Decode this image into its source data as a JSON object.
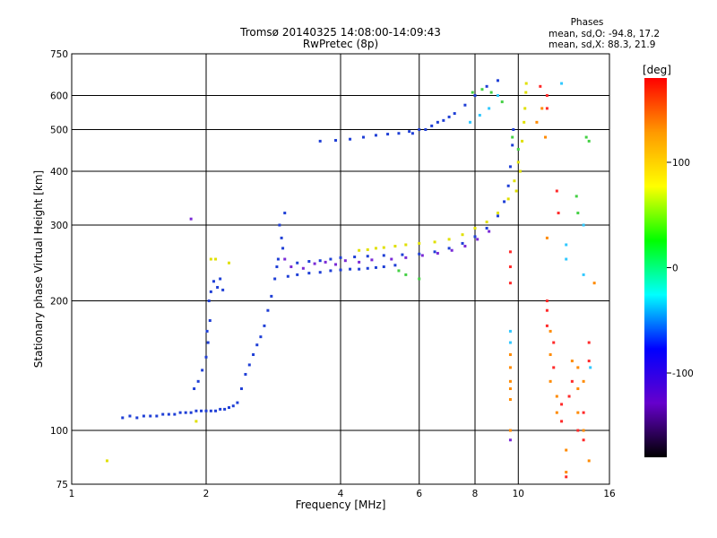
{
  "chart_data": {
    "type": "scatter",
    "title": "Tromsø 20140325 14:08:00-14:09:43",
    "subtitle": "RwPretec (8p)",
    "xlabel": "Frequency [MHz]",
    "ylabel": "Stationary phase Virtual Height [km]",
    "x_scale": "log",
    "y_scale": "log",
    "xlim": [
      1,
      16
    ],
    "ylim": [
      75,
      750
    ],
    "x_ticks": [
      1,
      2,
      4,
      6,
      8,
      10,
      16
    ],
    "y_ticks": [
      75,
      100,
      200,
      300,
      400,
      500,
      600,
      750
    ],
    "grid": true,
    "phase_box": {
      "title": "Phases",
      "line1": "mean, sd,O:  -94.8, 17.2",
      "line2": "mean, sd,X:   88.3, 21.9"
    },
    "colorbar": {
      "label": "[deg]",
      "min": -180,
      "max": 180,
      "ticks": [
        100,
        0,
        -100
      ],
      "colors": [
        "#ff0000",
        "#ff9900",
        "#ffff00",
        "#00ff00",
        "#00ffff",
        "#0000ff",
        "#6600cc",
        "#000000"
      ]
    },
    "series": [
      {
        "color": "#1f3fd6",
        "points": [
          [
            1.3,
            107
          ],
          [
            1.35,
            108
          ],
          [
            1.4,
            107
          ],
          [
            1.45,
            108
          ],
          [
            1.5,
            108
          ],
          [
            1.55,
            108
          ],
          [
            1.6,
            109
          ],
          [
            1.65,
            109
          ],
          [
            1.7,
            109
          ],
          [
            1.75,
            110
          ],
          [
            1.8,
            110
          ],
          [
            1.85,
            110
          ],
          [
            1.9,
            111
          ],
          [
            1.95,
            111
          ],
          [
            2.0,
            111
          ],
          [
            2.05,
            111
          ],
          [
            2.1,
            111
          ],
          [
            2.15,
            112
          ],
          [
            2.2,
            112
          ],
          [
            2.25,
            113
          ],
          [
            2.3,
            114
          ],
          [
            2.35,
            116
          ],
          [
            1.88,
            125
          ],
          [
            1.92,
            130
          ],
          [
            1.96,
            138
          ],
          [
            2.0,
            148
          ],
          [
            2.02,
            160
          ],
          [
            2.04,
            180
          ],
          [
            2.05,
            210
          ],
          [
            2.08,
            222
          ],
          [
            2.12,
            215
          ],
          [
            2.15,
            225
          ],
          [
            2.18,
            212
          ],
          [
            2.03,
            200
          ],
          [
            2.01,
            170
          ],
          [
            2.4,
            125
          ],
          [
            2.45,
            135
          ],
          [
            2.5,
            142
          ],
          [
            2.55,
            150
          ],
          [
            2.6,
            158
          ],
          [
            2.65,
            165
          ],
          [
            2.7,
            175
          ],
          [
            2.75,
            190
          ],
          [
            2.8,
            205
          ],
          [
            2.85,
            225
          ],
          [
            2.9,
            250
          ],
          [
            2.95,
            280
          ],
          [
            3.0,
            320
          ],
          [
            2.92,
            300
          ],
          [
            2.97,
            265
          ],
          [
            2.88,
            240
          ],
          [
            3.05,
            228
          ],
          [
            3.2,
            230
          ],
          [
            3.4,
            232
          ],
          [
            3.6,
            233
          ],
          [
            3.8,
            235
          ],
          [
            4.0,
            236
          ],
          [
            4.2,
            237
          ],
          [
            4.4,
            237
          ],
          [
            4.6,
            238
          ],
          [
            4.8,
            239
          ],
          [
            5.0,
            240
          ],
          [
            5.3,
            242
          ],
          [
            3.2,
            245
          ],
          [
            3.4,
            247
          ],
          [
            3.6,
            248
          ],
          [
            3.8,
            250
          ],
          [
            4.0,
            252
          ],
          [
            4.3,
            253
          ],
          [
            4.6,
            254
          ],
          [
            5.0,
            255
          ],
          [
            5.5,
            256
          ],
          [
            6.0,
            257
          ],
          [
            6.5,
            260
          ],
          [
            7.0,
            265
          ],
          [
            7.5,
            272
          ],
          [
            8.0,
            282
          ],
          [
            8.5,
            295
          ],
          [
            9.0,
            315
          ],
          [
            9.3,
            340
          ],
          [
            9.5,
            370
          ],
          [
            9.6,
            410
          ],
          [
            9.7,
            460
          ],
          [
            9.75,
            500
          ],
          [
            3.6,
            470
          ],
          [
            3.9,
            472
          ],
          [
            4.2,
            475
          ],
          [
            4.5,
            480
          ],
          [
            4.8,
            485
          ],
          [
            5.1,
            488
          ],
          [
            5.4,
            490
          ],
          [
            5.7,
            495
          ],
          [
            6.0,
            500
          ],
          [
            6.4,
            510
          ],
          [
            6.8,
            525
          ],
          [
            7.2,
            545
          ],
          [
            7.6,
            570
          ],
          [
            8.0,
            600
          ],
          [
            8.5,
            630
          ],
          [
            9.0,
            650
          ],
          [
            5.8,
            490
          ],
          [
            6.2,
            500
          ],
          [
            6.6,
            520
          ],
          [
            7.0,
            535
          ]
        ]
      },
      {
        "color": "#7a2ad6",
        "points": [
          [
            3.0,
            250
          ],
          [
            3.1,
            240
          ],
          [
            3.3,
            238
          ],
          [
            3.5,
            244
          ],
          [
            3.7,
            246
          ],
          [
            3.9,
            243
          ],
          [
            4.1,
            248
          ],
          [
            4.4,
            246
          ],
          [
            4.7,
            249
          ],
          [
            5.2,
            250
          ],
          [
            5.6,
            252
          ],
          [
            6.1,
            255
          ],
          [
            6.6,
            258
          ],
          [
            7.1,
            262
          ],
          [
            7.6,
            268
          ],
          [
            8.1,
            278
          ],
          [
            8.6,
            290
          ],
          [
            1.85,
            310
          ],
          [
            9.6,
            95
          ]
        ]
      },
      {
        "color": "#e0e000",
        "points": [
          [
            4.4,
            262
          ],
          [
            4.6,
            263
          ],
          [
            4.8,
            265
          ],
          [
            5.0,
            266
          ],
          [
            5.3,
            268
          ],
          [
            5.6,
            270
          ],
          [
            6.0,
            272
          ],
          [
            6.5,
            274
          ],
          [
            7.0,
            278
          ],
          [
            7.5,
            285
          ],
          [
            8.0,
            295
          ],
          [
            8.5,
            305
          ],
          [
            9.0,
            320
          ],
          [
            9.5,
            345
          ],
          [
            9.8,
            380
          ],
          [
            10.0,
            420
          ],
          [
            10.2,
            470
          ],
          [
            10.3,
            520
          ],
          [
            10.35,
            560
          ],
          [
            10.4,
            610
          ],
          [
            10.42,
            640
          ],
          [
            10.1,
            400
          ],
          [
            9.9,
            360
          ],
          [
            1.2,
            85
          ],
          [
            1.9,
            105
          ],
          [
            2.1,
            250
          ],
          [
            2.25,
            245
          ],
          [
            2.05,
            250
          ]
        ]
      },
      {
        "color": "#30c8ff",
        "points": [
          [
            7.8,
            520
          ],
          [
            8.2,
            540
          ],
          [
            8.6,
            560
          ],
          [
            9.0,
            600
          ],
          [
            9.6,
            170
          ],
          [
            9.6,
            160
          ],
          [
            12.8,
            270
          ],
          [
            12.8,
            250
          ],
          [
            14.0,
            300
          ],
          [
            14.0,
            230
          ],
          [
            14.5,
            140
          ],
          [
            12.5,
            640
          ]
        ]
      },
      {
        "color": "#ff8a00",
        "points": [
          [
            9.6,
            150
          ],
          [
            9.6,
            140
          ],
          [
            9.6,
            130
          ],
          [
            9.6,
            125
          ],
          [
            9.6,
            118
          ],
          [
            9.6,
            100
          ],
          [
            11.8,
            170
          ],
          [
            11.8,
            150
          ],
          [
            11.8,
            130
          ],
          [
            12.2,
            120
          ],
          [
            12.2,
            110
          ],
          [
            12.8,
            90
          ],
          [
            12.8,
            80
          ],
          [
            13.2,
            145
          ],
          [
            13.6,
            140
          ],
          [
            13.6,
            125
          ],
          [
            13.6,
            110
          ],
          [
            14.0,
            130
          ],
          [
            14.0,
            100
          ],
          [
            14.4,
            85
          ],
          [
            14.8,
            220
          ],
          [
            11.6,
            280
          ],
          [
            11.5,
            480
          ],
          [
            11.0,
            520
          ],
          [
            11.3,
            560
          ]
        ]
      },
      {
        "color": "#ff2a2a",
        "points": [
          [
            9.6,
            260
          ],
          [
            9.6,
            240
          ],
          [
            9.6,
            220
          ],
          [
            11.6,
            200
          ],
          [
            11.6,
            190
          ],
          [
            11.6,
            175
          ],
          [
            12.0,
            160
          ],
          [
            12.0,
            140
          ],
          [
            12.5,
            115
          ],
          [
            12.5,
            105
          ],
          [
            12.8,
            78
          ],
          [
            13.0,
            120
          ],
          [
            13.2,
            130
          ],
          [
            13.6,
            100
          ],
          [
            14.0,
            95
          ],
          [
            14.0,
            110
          ],
          [
            14.4,
            160
          ],
          [
            14.4,
            145
          ],
          [
            11.2,
            630
          ],
          [
            11.6,
            600
          ],
          [
            11.6,
            560
          ],
          [
            12.2,
            360
          ],
          [
            12.3,
            320
          ]
        ]
      },
      {
        "color": "#44d044",
        "points": [
          [
            7.9,
            610
          ],
          [
            8.3,
            620
          ],
          [
            8.7,
            610
          ],
          [
            9.2,
            580
          ],
          [
            5.4,
            235
          ],
          [
            5.6,
            230
          ],
          [
            6.0,
            225
          ],
          [
            13.5,
            350
          ],
          [
            13.6,
            320
          ],
          [
            14.2,
            480
          ],
          [
            14.4,
            470
          ],
          [
            9.7,
            480
          ],
          [
            10.0,
            450
          ]
        ]
      }
    ]
  }
}
